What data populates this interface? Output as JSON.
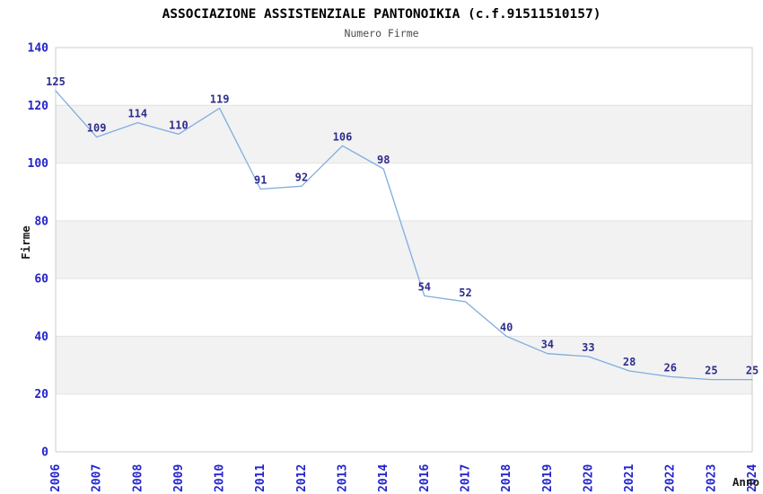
{
  "chart_data": {
    "type": "line",
    "title": "ASSOCIAZIONE ASSISTENZIALE PANTONOIKIA (c.f.91511510157)",
    "subtitle": "Numero Firme",
    "xlabel": "Anno",
    "ylabel": "Firme",
    "categories": [
      "2006",
      "2007",
      "2008",
      "2009",
      "2010",
      "2011",
      "2012",
      "2013",
      "2014",
      "2016",
      "2017",
      "2018",
      "2019",
      "2020",
      "2021",
      "2022",
      "2023",
      "2024"
    ],
    "values": [
      125,
      109,
      114,
      110,
      119,
      91,
      92,
      106,
      98,
      54,
      52,
      40,
      34,
      33,
      28,
      26,
      25,
      25
    ],
    "y_ticks": [
      0,
      20,
      40,
      60,
      80,
      100,
      120,
      140
    ],
    "ylim": [
      0,
      140
    ],
    "grid": "horizontal-bands-and-lines",
    "legend_position": "none",
    "data_labels_shown": true,
    "colors": {
      "line": "#7fade0",
      "data_label": "#2e2e8e",
      "tick_label": "#2424cc",
      "title": "#000000",
      "subtitle": "#4d4d4d",
      "band": "#f2f2f2",
      "gridline": "#e2e2e2",
      "plot_border": "#cccccc",
      "background": "#ffffff",
      "axis_title": "#1a1a1a"
    }
  }
}
